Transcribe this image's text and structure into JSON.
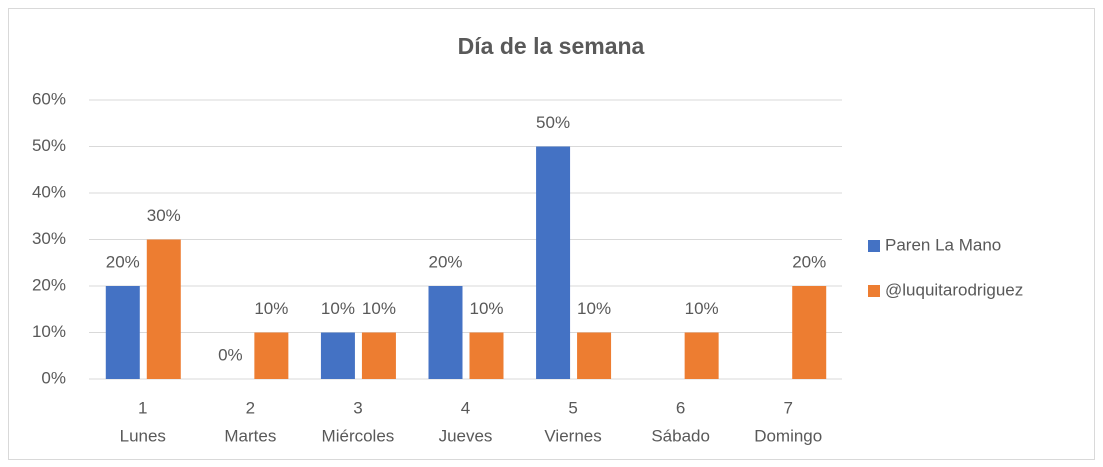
{
  "chart_data": {
    "type": "bar",
    "title": "Día de la semana",
    "categories": [
      [
        "1",
        "Lunes"
      ],
      [
        "2",
        "Martes"
      ],
      [
        "3",
        "Miércoles"
      ],
      [
        "4",
        "Jueves"
      ],
      [
        "5",
        "Viernes"
      ],
      [
        "6",
        "Sábado"
      ],
      [
        "7",
        "Domingo"
      ]
    ],
    "series": [
      {
        "name": "Paren La Mano",
        "color": "#4472c4",
        "values": [
          20,
          0,
          10,
          20,
          50,
          null,
          null
        ],
        "value_labels": [
          "20%",
          "0%",
          "10%",
          "20%",
          "50%",
          null,
          null
        ]
      },
      {
        "name": "@luquitarodriguez",
        "color": "#ed7d31",
        "values": [
          30,
          10,
          10,
          10,
          10,
          10,
          20
        ],
        "value_labels": [
          "30%",
          "10%",
          "10%",
          "10%",
          "10%",
          "10%",
          "20%"
        ]
      }
    ],
    "ylim": [
      0,
      60
    ],
    "yticks": [
      {
        "value": 0,
        "label": "0%"
      },
      {
        "value": 10,
        "label": "10%"
      },
      {
        "value": 20,
        "label": "20%"
      },
      {
        "value": 30,
        "label": "30%"
      },
      {
        "value": 40,
        "label": "40%"
      },
      {
        "value": 50,
        "label": "50%"
      },
      {
        "value": 60,
        "label": "60%"
      }
    ],
    "grid": true,
    "legend": "right"
  }
}
